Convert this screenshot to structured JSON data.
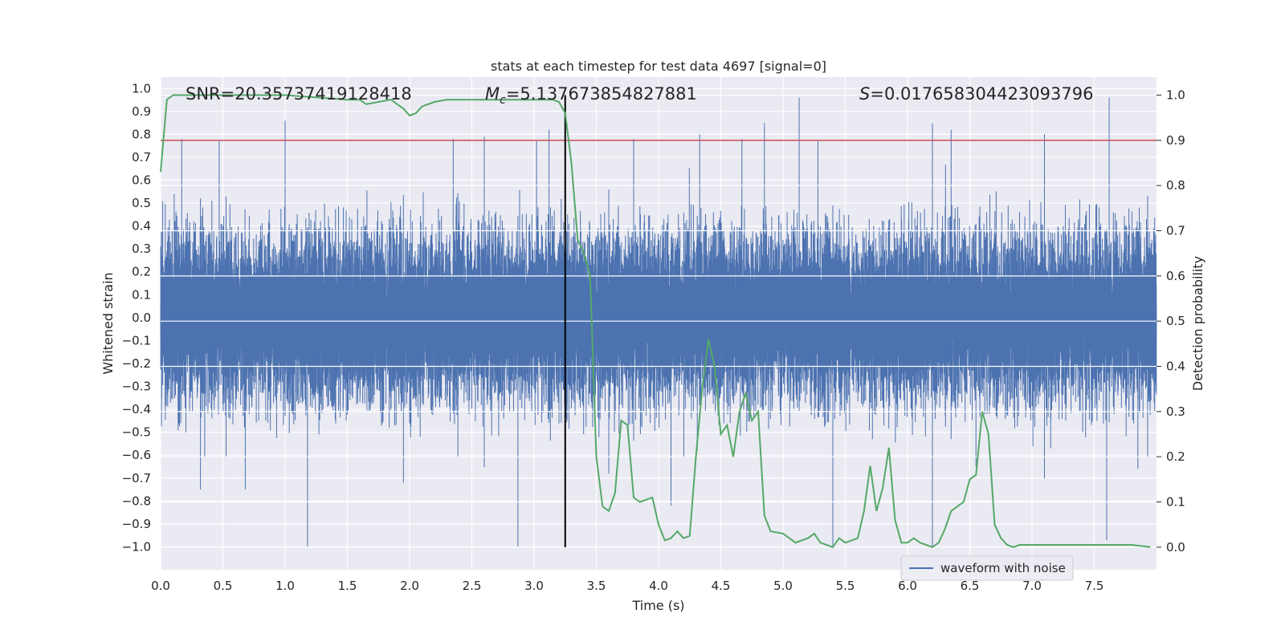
{
  "chart_data": {
    "type": "line",
    "title": "stats at each timestep for test data 4697 [signal=0]",
    "xlabel": "Time (s)",
    "ylabel_left": "Whitened strain",
    "ylabel_right": "Detection probability",
    "xlim": [
      0.0,
      8.0
    ],
    "ylim_left": [
      -1.1,
      1.05
    ],
    "ylim_right": [
      -0.05,
      1.04
    ],
    "xticks": [
      0.0,
      0.5,
      1.0,
      1.5,
      2.0,
      2.5,
      3.0,
      3.5,
      4.0,
      4.5,
      5.0,
      5.5,
      6.0,
      6.5,
      7.0,
      7.5
    ],
    "xtick_labels": [
      "0.0",
      "0.5",
      "1.0",
      "1.5",
      "2.0",
      "2.5",
      "3.0",
      "3.5",
      "4.0",
      "4.5",
      "5.0",
      "5.5",
      "6.0",
      "6.5",
      "7.0",
      "7.5"
    ],
    "yticks_left": [
      1.0,
      0.9,
      0.8,
      0.7,
      0.6,
      0.5,
      0.4,
      0.3,
      0.2,
      0.1,
      0.0,
      -0.1,
      -0.2,
      -0.3,
      -0.4,
      -0.5,
      -0.6,
      -0.7,
      -0.8,
      -0.9,
      -1.0
    ],
    "ytick_labels_left": [
      "1.0",
      "0.9",
      "0.8",
      "0.7",
      "0.6",
      "0.5",
      "0.4",
      "0.3",
      "0.2",
      "0.1",
      "0.0",
      "−0.1",
      "−0.2",
      "−0.3",
      "−0.4",
      "−0.5",
      "−0.6",
      "−0.7",
      "−0.8",
      "−0.9",
      "−1.0"
    ],
    "yticks_right": [
      1.0,
      0.9,
      0.8,
      0.7,
      0.6,
      0.5,
      0.4,
      0.3,
      0.2,
      0.1,
      0.0
    ],
    "ytick_labels_right": [
      "1.0",
      "0.9",
      "0.8",
      "0.7",
      "0.6",
      "0.5",
      "0.4",
      "0.3",
      "0.2",
      "0.1",
      "0.0"
    ],
    "annotations": {
      "snr": "SNR=20.35737419128418",
      "mc_symbol": "M",
      "mc_subscript": "c",
      "mc_value": "=5.137673854827881",
      "s_symbol": "S",
      "s_value": "=0.017658304423093796"
    },
    "threshold": {
      "value": 0.9,
      "axis": "right",
      "color": "#c44e52"
    },
    "marker_time": 3.25,
    "legend": {
      "label": "waveform with noise",
      "placement": "lower-right"
    },
    "waveform": {
      "name": "waveform with noise",
      "color": "#4c72b0",
      "sample_rate": 2048,
      "duration": 8.0,
      "typical_range": [
        -0.42,
        0.46
      ],
      "max": 0.96,
      "min": -1.0,
      "spikes": [
        [
          0.17,
          0.78
        ],
        [
          0.47,
          0.77
        ],
        [
          1.0,
          0.86
        ],
        [
          1.18,
          -1.0
        ],
        [
          2.6,
          0.79
        ],
        [
          2.87,
          -1.0
        ],
        [
          3.02,
          0.77
        ],
        [
          3.12,
          0.82
        ],
        [
          4.33,
          0.8
        ],
        [
          4.85,
          0.85
        ],
        [
          5.13,
          0.96
        ],
        [
          5.4,
          -1.0
        ],
        [
          6.2,
          -1.0
        ],
        [
          7.62,
          0.96
        ],
        [
          7.6,
          -0.97
        ],
        [
          0.32,
          -0.75
        ],
        [
          0.68,
          -0.75
        ],
        [
          3.8,
          0.78
        ],
        [
          7.1,
          0.8
        ],
        [
          1.95,
          -0.72
        ],
        [
          4.1,
          -0.82
        ],
        [
          6.35,
          0.82
        ],
        [
          4.67,
          0.78
        ],
        [
          3.6,
          -0.68
        ],
        [
          6.55,
          -0.65
        ],
        [
          5.28,
          0.77
        ],
        [
          2.35,
          0.78
        ],
        [
          7.85,
          -0.66
        ]
      ]
    },
    "probability": {
      "name": "detection probability",
      "color": "#55a868",
      "x": [
        0.0,
        0.05,
        0.1,
        0.2,
        0.5,
        1.0,
        1.5,
        1.6,
        1.65,
        1.75,
        1.85,
        1.95,
        2.0,
        2.05,
        2.1,
        2.2,
        2.3,
        2.4,
        2.5,
        2.6,
        2.7,
        2.8,
        2.9,
        3.0,
        3.1,
        3.15,
        3.2,
        3.25,
        3.3,
        3.35,
        3.4,
        3.45,
        3.5,
        3.55,
        3.6,
        3.65,
        3.7,
        3.75,
        3.8,
        3.85,
        3.95,
        4.0,
        4.05,
        4.1,
        4.15,
        4.2,
        4.25,
        4.3,
        4.35,
        4.4,
        4.45,
        4.5,
        4.55,
        4.6,
        4.65,
        4.7,
        4.75,
        4.8,
        4.85,
        4.9,
        5.0,
        5.1,
        5.2,
        5.25,
        5.3,
        5.35,
        5.4,
        5.45,
        5.5,
        5.55,
        5.6,
        5.65,
        5.7,
        5.75,
        5.8,
        5.85,
        5.9,
        5.95,
        6.0,
        6.05,
        6.1,
        6.15,
        6.2,
        6.25,
        6.3,
        6.35,
        6.4,
        6.45,
        6.5,
        6.55,
        6.6,
        6.65,
        6.7,
        6.75,
        6.8,
        6.85,
        6.9,
        6.95,
        7.0,
        7.05,
        7.1,
        7.15,
        7.2,
        7.3,
        7.4,
        7.5,
        7.6,
        7.7,
        7.8,
        7.9,
        7.95
      ],
      "y": [
        0.83,
        0.99,
        1.0,
        1.0,
        1.0,
        1.0,
        0.99,
        0.99,
        0.98,
        0.985,
        0.99,
        0.97,
        0.955,
        0.96,
        0.975,
        0.985,
        0.99,
        0.99,
        0.99,
        0.99,
        0.99,
        0.99,
        0.99,
        0.99,
        0.99,
        0.99,
        0.985,
        0.96,
        0.85,
        0.68,
        0.65,
        0.6,
        0.2,
        0.09,
        0.08,
        0.12,
        0.28,
        0.27,
        0.11,
        0.1,
        0.11,
        0.05,
        0.015,
        0.02,
        0.035,
        0.02,
        0.025,
        0.2,
        0.35,
        0.46,
        0.4,
        0.25,
        0.27,
        0.2,
        0.3,
        0.34,
        0.28,
        0.3,
        0.07,
        0.035,
        0.03,
        0.01,
        0.02,
        0.03,
        0.01,
        0.005,
        0.0,
        0.02,
        0.01,
        0.015,
        0.02,
        0.08,
        0.18,
        0.08,
        0.13,
        0.22,
        0.06,
        0.01,
        0.01,
        0.02,
        0.01,
        0.005,
        0.0,
        0.01,
        0.04,
        0.08,
        0.09,
        0.1,
        0.15,
        0.16,
        0.3,
        0.25,
        0.05,
        0.02,
        0.005,
        0.0,
        0.005,
        0.005,
        0.005,
        0.005,
        0.005,
        0.005,
        0.005,
        0.005,
        0.005,
        0.005,
        0.005,
        0.005,
        0.005,
        0.002,
        0.0
      ]
    }
  }
}
